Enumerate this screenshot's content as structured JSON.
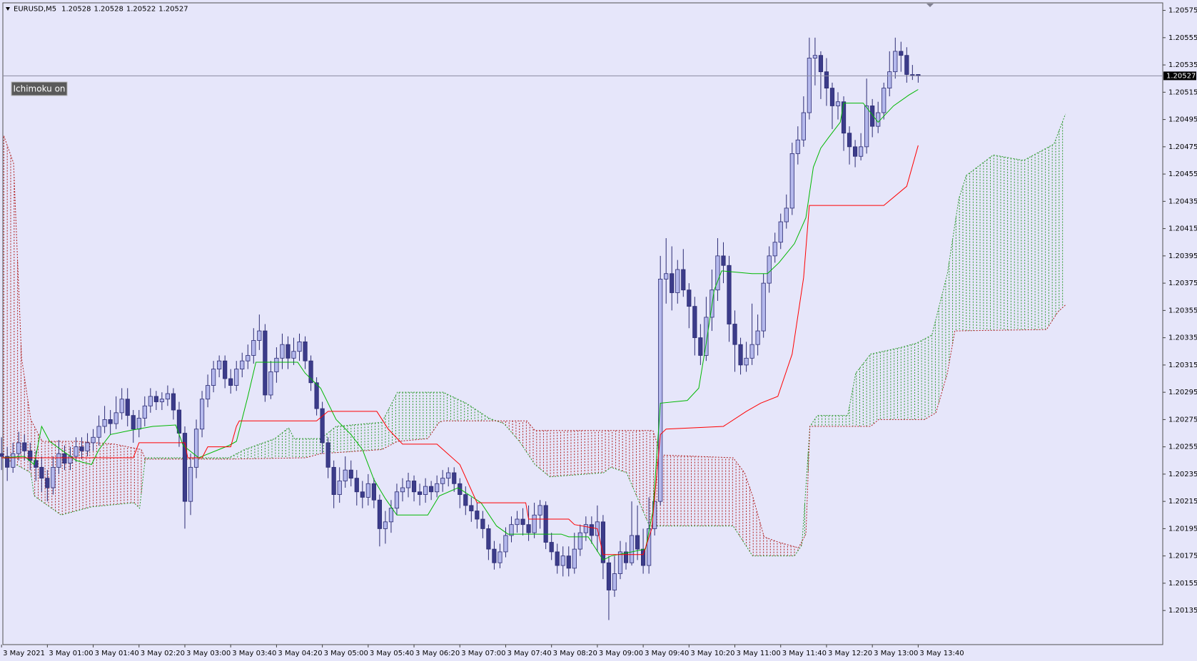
{
  "chart_data": {
    "type": "candlestick",
    "title": "EURUSD,M5",
    "indicator_button": "Ichimoku on",
    "ylim": [
      1.2011,
      1.2058
    ],
    "yticks": [
      1.20575,
      1.20555,
      1.20535,
      1.20515,
      1.20495,
      1.20475,
      1.20455,
      1.20435,
      1.20415,
      1.20395,
      1.20375,
      1.20355,
      1.20335,
      1.20315,
      1.20295,
      1.20275,
      1.20255,
      1.20235,
      1.20215,
      1.20195,
      1.20175,
      1.20155,
      1.20135
    ],
    "grid": false,
    "bull_color": "#b4b8ec",
    "bear_color": "#3c3c8a",
    "edge_color": "#2c2c74",
    "categories": [
      "3 May 2021",
      null,
      null,
      null,
      null,
      null,
      null,
      null,
      "3 May 01:00",
      null,
      null,
      null,
      null,
      null,
      null,
      null,
      "3 May 01:40",
      null,
      null,
      null,
      null,
      null,
      null,
      null,
      "3 May 02:20",
      null,
      null,
      null,
      null,
      null,
      null,
      null,
      "3 May 03:00",
      null,
      null,
      null,
      null,
      null,
      null,
      null,
      "3 May 03:40",
      null,
      null,
      null,
      null,
      null,
      null,
      null,
      "3 May 04:20",
      null,
      null,
      null,
      null,
      null,
      null,
      null,
      "3 May 05:00",
      null,
      null,
      null,
      null,
      null,
      null,
      null,
      "3 May 05:40",
      null,
      null,
      null,
      null,
      null,
      null,
      null,
      "3 May 06:20",
      null,
      null,
      null,
      null,
      null,
      null,
      null,
      "3 May 07:00",
      null,
      null,
      null,
      null,
      null,
      null,
      null,
      "3 May 07:40",
      null,
      null,
      null,
      null,
      null,
      null,
      null,
      "3 May 08:20",
      null,
      null,
      null,
      null,
      null,
      null,
      null,
      "3 May 09:00",
      null,
      null,
      null,
      null,
      null,
      null,
      null,
      "3 May 09:40",
      null,
      null,
      null,
      null,
      null,
      null,
      null,
      "3 May 10:20",
      null,
      null,
      null,
      null,
      null,
      null,
      null,
      "3 May 11:00",
      null,
      null,
      null,
      null,
      null,
      null,
      null,
      "3 May 11:40",
      null,
      null,
      null,
      null,
      null,
      null,
      null,
      "3 May 12:20",
      null,
      null,
      null,
      null,
      null,
      null,
      null,
      "3 May 13:00",
      null,
      null,
      null,
      null,
      null,
      null,
      null,
      "3 May 13:40"
    ],
    "open": [
      1.2025,
      1.20248,
      1.2024,
      1.2025,
      1.20258,
      1.20252,
      1.20245,
      1.2024,
      1.20232,
      1.20225,
      1.2024,
      1.2025,
      1.20243,
      1.20248,
      1.20255,
      1.20252,
      1.20258,
      1.20262,
      1.2027,
      1.20275,
      1.20272,
      1.2028,
      1.2029,
      1.20278,
      1.20268,
      1.20276,
      1.20285,
      1.20292,
      1.20288,
      1.2029,
      1.20294,
      1.20282,
      1.20265,
      1.20215,
      1.2024,
      1.20268,
      1.2029,
      1.203,
      1.20312,
      1.20318,
      1.20305,
      1.203,
      1.20312,
      1.20318,
      1.20322,
      1.20333,
      1.2034,
      1.20293,
      1.2031,
      1.2032,
      1.2033,
      1.2032,
      1.20325,
      1.20332,
      1.20318,
      1.20302,
      1.20283,
      1.20258,
      1.2024,
      1.2022,
      1.2023,
      1.20238,
      1.20232,
      1.20222,
      1.20218,
      1.20228,
      1.20216,
      1.20195,
      1.202,
      1.2021,
      1.20222,
      1.20225,
      1.2023,
      1.20222,
      1.2022,
      1.20226,
      1.20222,
      1.20228,
      1.20232,
      1.20236,
      1.20228,
      1.2022,
      1.20212,
      1.20208,
      1.20202,
      1.20195,
      1.2018,
      1.2017,
      1.20178,
      1.2019,
      1.20198,
      1.20202,
      1.20198,
      1.20192,
      1.20205,
      1.20212,
      1.20185,
      1.20178,
      1.20168,
      1.20175,
      1.20166,
      1.2018,
      1.20192,
      1.20198,
      1.2019,
      1.202,
      1.2017,
      1.2015,
      1.20162,
      1.20178,
      1.2017,
      1.2019,
      1.2018,
      1.20168,
      1.20195,
      1.20215,
      1.20378,
      1.20382,
      1.20368,
      1.20385,
      1.2037,
      1.20358,
      1.20335,
      1.20322,
      1.2035,
      1.2037,
      1.20395,
      1.20388,
      1.20345,
      1.2033,
      1.20315,
      1.2032,
      1.2033,
      1.2034,
      1.20375,
      1.20395,
      1.20405,
      1.2042,
      1.2043,
      1.2047,
      1.2048,
      1.205,
      1.2054,
      1.20542,
      1.2053,
      1.20518,
      1.20505,
      1.20508,
      1.20485,
      1.20475,
      1.20468,
      1.20475,
      1.20505,
      1.2049,
      1.205,
      1.20518,
      1.2053,
      1.20545,
      1.20542,
      1.20528,
      1.20528
    ],
    "high": [
      1.20262,
      1.20255,
      1.20258,
      1.20266,
      1.20264,
      1.20258,
      1.20252,
      1.20248,
      1.20238,
      1.20248,
      1.2026,
      1.20256,
      1.20255,
      1.20262,
      1.20262,
      1.20265,
      1.20268,
      1.20278,
      1.20285,
      1.20282,
      1.20292,
      1.20298,
      1.20298,
      1.20282,
      1.20282,
      1.20292,
      1.20298,
      1.20296,
      1.20295,
      1.203,
      1.20298,
      1.20288,
      1.2027,
      1.2025,
      1.20275,
      1.20296,
      1.20308,
      1.20318,
      1.20322,
      1.20322,
      1.20312,
      1.20318,
      1.20324,
      1.2033,
      1.20342,
      1.20352,
      1.20345,
      1.20318,
      1.20328,
      1.20338,
      1.20336,
      1.20335,
      1.20338,
      1.20336,
      1.20322,
      1.20306,
      1.20288,
      1.20262,
      1.20245,
      1.2024,
      1.20248,
      1.20245,
      1.20238,
      1.2023,
      1.20235,
      1.20232,
      1.2022,
      1.20208,
      1.20216,
      1.20228,
      1.20232,
      1.20236,
      1.20234,
      1.20228,
      1.20232,
      1.2023,
      1.20234,
      1.20238,
      1.2024,
      1.2024,
      1.20232,
      1.20226,
      1.20218,
      1.20214,
      1.20208,
      1.20198,
      1.20186,
      1.20184,
      1.20196,
      1.20204,
      1.20208,
      1.2021,
      1.20212,
      1.20214,
      1.20216,
      1.20215,
      1.20192,
      1.20184,
      1.20182,
      1.20182,
      1.20192,
      1.20198,
      1.20204,
      1.20204,
      1.20212,
      1.20205,
      1.20175,
      1.20175,
      1.20186,
      1.20185,
      1.20215,
      1.20212,
      1.20195,
      1.20218,
      1.20222,
      1.20395,
      1.20408,
      1.20402,
      1.20392,
      1.204,
      1.20375,
      1.20365,
      1.20345,
      1.20365,
      1.20385,
      1.20408,
      1.20405,
      1.20395,
      1.20355,
      1.20335,
      1.20332,
      1.2036,
      1.20352,
      1.20382,
      1.20402,
      1.20412,
      1.20426,
      1.2044,
      1.20478,
      1.2049,
      1.20512,
      1.20555,
      1.20555,
      1.20545,
      1.2054,
      1.20522,
      1.20515,
      1.20512,
      1.2049,
      1.2048,
      1.20485,
      1.20525,
      1.2051,
      1.20508,
      1.20522,
      1.20545,
      1.20555,
      1.20552,
      1.20548,
      1.20535,
      1.20528
    ],
    "low": [
      1.20238,
      1.2023,
      1.20236,
      1.20245,
      1.20245,
      1.20238,
      1.2023,
      1.20222,
      1.20215,
      1.2022,
      1.20235,
      1.20238,
      1.20238,
      1.20244,
      1.20246,
      1.20248,
      1.20252,
      1.20256,
      1.20265,
      1.20264,
      1.20268,
      1.20275,
      1.2027,
      1.20258,
      1.20262,
      1.2027,
      1.2028,
      1.20282,
      1.20282,
      1.20285,
      1.20275,
      1.20255,
      1.20195,
      1.20205,
      1.20232,
      1.20262,
      1.20284,
      1.20295,
      1.20306,
      1.20298,
      1.20294,
      1.20296,
      1.20306,
      1.20312,
      1.20316,
      1.20326,
      1.20288,
      1.2029,
      1.20302,
      1.20312,
      1.20312,
      1.20315,
      1.20318,
      1.20312,
      1.20296,
      1.20278,
      1.2025,
      1.20232,
      1.2021,
      1.20214,
      1.20225,
      1.20226,
      1.20212,
      1.2021,
      1.20212,
      1.2021,
      1.20182,
      1.20184,
      1.20192,
      1.20205,
      1.20215,
      1.20218,
      1.20215,
      1.20212,
      1.20214,
      1.20216,
      1.20218,
      1.20222,
      1.20226,
      1.20222,
      1.2021,
      1.20205,
      1.202,
      1.20195,
      1.20188,
      1.20172,
      1.20165,
      1.20166,
      1.20174,
      1.20185,
      1.20192,
      1.2019,
      1.20186,
      1.20188,
      1.20195,
      1.2018,
      1.20172,
      1.20162,
      1.2016,
      1.2016,
      1.20162,
      1.20175,
      1.20186,
      1.20184,
      1.20178,
      1.20158,
      1.20128,
      1.20145,
      1.20158,
      1.20165,
      1.20168,
      1.20172,
      1.20162,
      1.20162,
      1.2019,
      1.20212,
      1.2036,
      1.20355,
      1.2036,
      1.20365,
      1.20342,
      1.20322,
      1.20315,
      1.20318,
      1.2034,
      1.20362,
      1.20375,
      1.20332,
      1.2031,
      1.20308,
      1.2031,
      1.20315,
      1.20322,
      1.20335,
      1.20368,
      1.2039,
      1.204,
      1.20415,
      1.20425,
      1.20462,
      1.20475,
      1.20495,
      1.2052,
      1.2051,
      1.20505,
      1.20488,
      1.20495,
      1.20472,
      1.20462,
      1.2046,
      1.20465,
      1.2047,
      1.20482,
      1.20485,
      1.20495,
      1.20512,
      1.20525,
      1.2053,
      1.20522,
      1.20524,
      1.20522
    ],
    "close": [
      1.20248,
      1.2024,
      1.2025,
      1.20258,
      1.20252,
      1.20245,
      1.2024,
      1.20232,
      1.20225,
      1.2024,
      1.2025,
      1.20243,
      1.20248,
      1.20255,
      1.20252,
      1.20258,
      1.20262,
      1.2027,
      1.20275,
      1.20272,
      1.2028,
      1.2029,
      1.20278,
      1.20268,
      1.20276,
      1.20285,
      1.20292,
      1.20288,
      1.2029,
      1.20294,
      1.20282,
      1.20265,
      1.20215,
      1.2024,
      1.20268,
      1.2029,
      1.203,
      1.20312,
      1.20318,
      1.20305,
      1.203,
      1.20312,
      1.20318,
      1.20322,
      1.20333,
      1.2034,
      1.20293,
      1.2031,
      1.2032,
      1.2033,
      1.2032,
      1.20325,
      1.20332,
      1.20318,
      1.20302,
      1.20283,
      1.20258,
      1.2024,
      1.2022,
      1.2023,
      1.20238,
      1.20232,
      1.20222,
      1.20218,
      1.20228,
      1.20216,
      1.20195,
      1.202,
      1.2021,
      1.20222,
      1.20225,
      1.2023,
      1.20222,
      1.2022,
      1.20226,
      1.20222,
      1.20228,
      1.20232,
      1.20236,
      1.20228,
      1.2022,
      1.20212,
      1.20208,
      1.20202,
      1.20195,
      1.2018,
      1.2017,
      1.20178,
      1.2019,
      1.20198,
      1.20202,
      1.20198,
      1.20192,
      1.20205,
      1.20212,
      1.20185,
      1.20178,
      1.20168,
      1.20175,
      1.20166,
      1.2018,
      1.20192,
      1.20198,
      1.2019,
      1.202,
      1.2017,
      1.2015,
      1.20162,
      1.20178,
      1.2017,
      1.2019,
      1.2018,
      1.20168,
      1.20195,
      1.20215,
      1.20378,
      1.20382,
      1.20368,
      1.20385,
      1.2037,
      1.20358,
      1.20335,
      1.20322,
      1.2035,
      1.2037,
      1.20395,
      1.20388,
      1.20345,
      1.2033,
      1.20315,
      1.2032,
      1.2033,
      1.2034,
      1.20375,
      1.20395,
      1.20405,
      1.2042,
      1.2043,
      1.2047,
      1.2048,
      1.205,
      1.2054,
      1.20542,
      1.2053,
      1.20518,
      1.20505,
      1.20508,
      1.20485,
      1.20475,
      1.20468,
      1.20475,
      1.20505,
      1.2049,
      1.205,
      1.20518,
      1.2053,
      1.20545,
      1.20542,
      1.20528,
      1.20528,
      1.20527
    ],
    "lines": [
      {
        "color": "#00b800",
        "x": [
          0,
          4,
          5.7,
          7,
          8.4,
          13,
          15.7,
          17,
          19,
          22.4,
          26.4,
          30.4,
          31.7,
          34.4,
          39.7,
          41,
          43,
          44.4,
          51.7,
          53,
          55.7,
          58.4,
          61,
          63,
          65,
          67,
          69,
          74.4,
          76.4,
          79.7,
          83.7,
          86.4,
          88.4,
          93,
          97.7,
          99,
          102.4,
          105,
          106.4,
          112.4,
          113.7,
          115,
          119.7,
          121.7,
          123,
          124.4,
          125.7,
          131,
          133.7,
          135.7,
          138.4,
          140.4,
          141.7,
          143,
          144.4,
          146.4,
          147,
          150.4,
          153,
          155.7,
          158.4,
          160
        ],
        "values": [
          1.20247,
          1.20248,
          1.20242,
          1.2027,
          1.20259,
          1.20245,
          1.20242,
          1.20253,
          1.20264,
          1.20267,
          1.2027,
          1.20271,
          1.20256,
          1.20247,
          1.20256,
          1.20259,
          1.20292,
          1.20317,
          1.20317,
          1.20309,
          1.20298,
          1.20275,
          1.20264,
          1.20253,
          1.20231,
          1.20217,
          1.20205,
          1.20205,
          1.20219,
          1.20225,
          1.20214,
          1.20197,
          1.20191,
          1.20191,
          1.20191,
          1.20189,
          1.20189,
          1.20172,
          1.20175,
          1.2018,
          1.20208,
          1.20287,
          1.20289,
          1.20298,
          1.20331,
          1.2037,
          1.20384,
          1.20382,
          1.20382,
          1.2039,
          1.20404,
          1.20423,
          1.2046,
          1.20474,
          1.20482,
          1.20493,
          1.20507,
          1.20507,
          1.20493,
          1.20505,
          1.20513,
          1.20517
        ]
      },
      {
        "color": "#ff0000",
        "x": [
          0,
          23,
          24,
          32,
          32.5,
          35,
          36,
          40,
          41,
          41.5,
          55,
          57,
          65.5,
          67.5,
          70,
          76,
          80,
          83,
          91.5,
          92,
          99,
          100,
          104,
          105,
          112,
          113.5,
          115,
          116,
          126,
          130,
          132.5,
          135.5,
          138,
          140,
          141,
          154,
          158,
          160
        ],
        "values": [
          1.20247,
          1.20247,
          1.20258,
          1.20258,
          1.20247,
          1.20247,
          1.20255,
          1.20255,
          1.2027,
          1.20274,
          1.20274,
          1.20281,
          1.20281,
          1.20268,
          1.20257,
          1.20257,
          1.20242,
          1.20214,
          1.20214,
          1.20202,
          1.20202,
          1.20198,
          1.20195,
          1.20176,
          1.20176,
          1.20195,
          1.20264,
          1.20268,
          1.2027,
          1.20281,
          1.20287,
          1.20292,
          1.20323,
          1.20379,
          1.20432,
          1.20432,
          1.20446,
          1.20476
        ]
      }
    ],
    "cloud": {
      "up_color": "#2f9a2f",
      "down_color": "#b02020",
      "span_a": {
        "x": [
          0.4,
          5.1,
          5.7,
          10.4,
          15.7,
          23.1,
          24.1,
          25.1,
          39.7,
          42.4,
          47.7,
          50.1,
          51.1,
          55.7,
          58.4,
          66.4,
          69.1,
          77.1,
          81.1,
          85.1,
          87.7,
          90.4,
          93.1,
          95.7,
          105.1,
          106.4,
          109.1,
          113.1,
          127.7,
          131.1,
          138.4,
          139.7,
          140.4,
          141.1,
          142.4,
          147.7,
          149.1,
          151.7,
          157.1,
          159.7,
          162.4,
          165.1,
          167.1,
          168.4,
          173.1,
          178.4,
          183.7,
          185.7
        ],
        "values": [
          1.20247,
          1.20236,
          1.20219,
          1.20205,
          1.20211,
          1.20214,
          1.2021,
          1.20247,
          1.20247,
          1.20253,
          1.20261,
          1.20269,
          1.20261,
          1.20261,
          1.2027,
          1.20273,
          1.20295,
          1.20295,
          1.20287,
          1.20276,
          1.20272,
          1.20259,
          1.20242,
          1.20233,
          1.20236,
          1.2024,
          1.20236,
          1.20197,
          1.20197,
          1.20175,
          1.20175,
          1.20183,
          1.20225,
          1.2027,
          1.20278,
          1.20278,
          1.20309,
          1.20323,
          1.20328,
          1.20331,
          1.20337,
          1.20382,
          1.20437,
          1.20454,
          1.20469,
          1.20465,
          1.20477,
          1.20499
        ]
      },
      "span_b": {
        "x": [
          0.4,
          2.1,
          3.5,
          5.1,
          7.1,
          13.1,
          19.7,
          24.4,
          25.1,
          39.7,
          53.1,
          55.7,
          66.4,
          69.1,
          74.4,
          76.4,
          77.1,
          91.7,
          93.1,
          113.7,
          115.1,
          127.7,
          129.7,
          131.1,
          133.1,
          135.7,
          139.1,
          140.4,
          141.1,
          151.7,
          153.1,
          161.1,
          163.1,
          165.1,
          166.4,
          182.4,
          184.4,
          185.7
        ],
        "values": [
          1.20483,
          1.20463,
          1.2032,
          1.20275,
          1.20259,
          1.20259,
          1.20257,
          1.20253,
          1.20246,
          1.20246,
          1.20247,
          1.2025,
          1.20253,
          1.20259,
          1.20261,
          1.20273,
          1.20274,
          1.20274,
          1.20267,
          1.20267,
          1.20249,
          1.20247,
          1.20236,
          1.20219,
          1.20189,
          1.20185,
          1.20181,
          1.20191,
          1.2027,
          1.2027,
          1.20275,
          1.20275,
          1.2028,
          1.20309,
          1.2034,
          1.20341,
          1.20354,
          1.20359
        ]
      }
    }
  }
}
